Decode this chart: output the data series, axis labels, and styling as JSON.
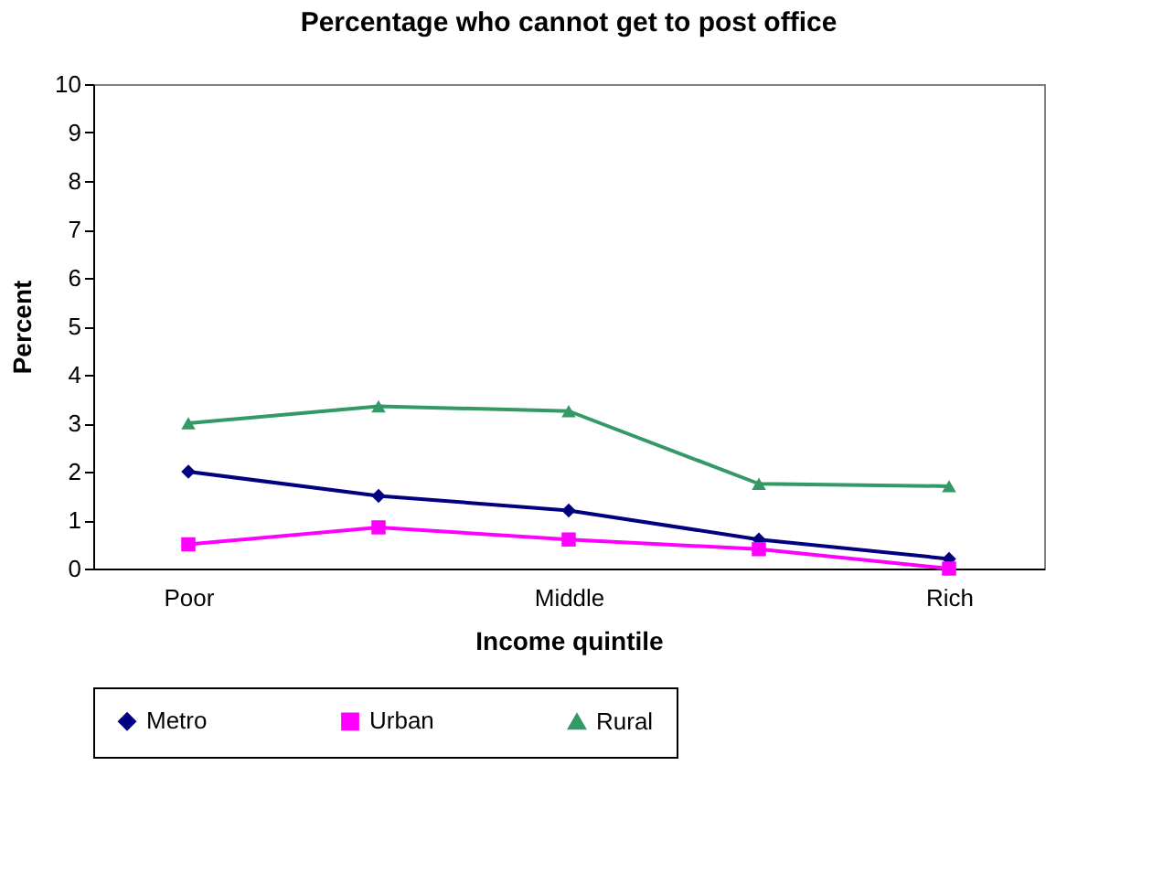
{
  "chart_data": {
    "type": "line",
    "title": "Percentage who cannot get to post office",
    "xlabel": "Income quintile",
    "ylabel": "Percent",
    "categories": [
      "Poor",
      null,
      "Middle",
      null,
      "Rich"
    ],
    "series": [
      {
        "name": "Metro",
        "color": "#000080",
        "marker": "diamond",
        "values": [
          2.0,
          1.5,
          1.2,
          0.6,
          0.2
        ]
      },
      {
        "name": "Urban",
        "color": "#ff00ff",
        "marker": "square",
        "values": [
          0.5,
          0.85,
          0.6,
          0.4,
          0.0
        ]
      },
      {
        "name": "Rural",
        "color": "#339966",
        "marker": "triangle",
        "values": [
          3.0,
          3.35,
          3.25,
          1.75,
          1.7
        ]
      }
    ],
    "ylim": [
      0,
      10
    ],
    "yticks": [
      0,
      1,
      2,
      3,
      4,
      5,
      6,
      7,
      8,
      9,
      10
    ],
    "grid": false,
    "legend": "bottom"
  }
}
